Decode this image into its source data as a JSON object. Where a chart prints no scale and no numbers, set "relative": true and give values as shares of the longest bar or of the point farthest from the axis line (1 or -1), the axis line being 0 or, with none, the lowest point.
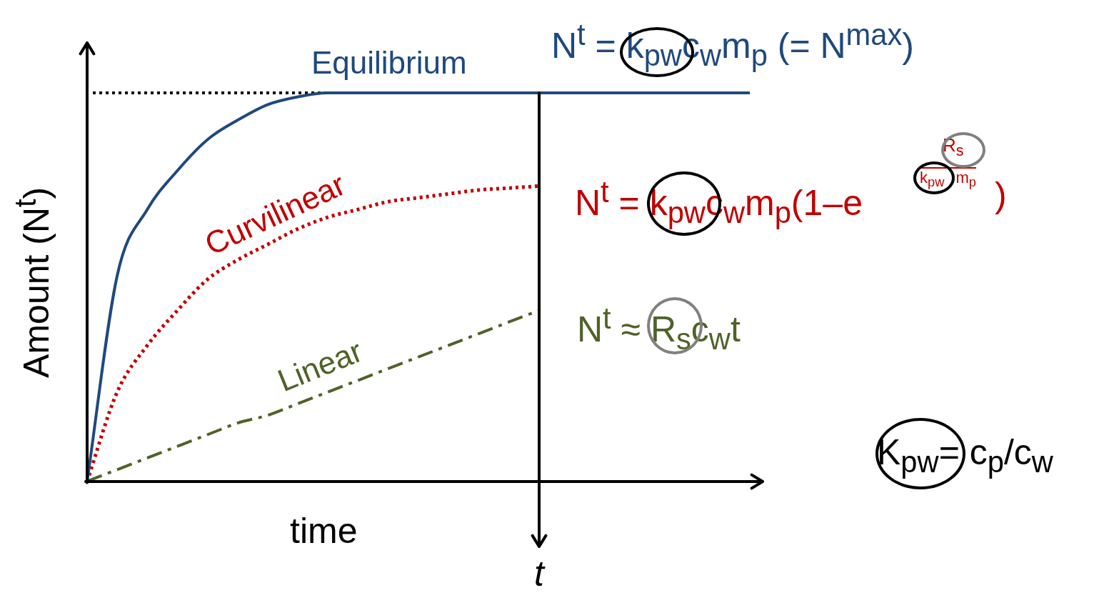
{
  "chart_data": {
    "type": "line",
    "relative": true,
    "xlabel": "time",
    "ylabel": "Amount (N$^{t}$)",
    "categories": [
      null,
      null,
      null,
      null,
      null,
      null,
      null,
      null,
      null,
      null,
      null,
      null,
      null,
      null,
      null,
      null,
      null,
      null,
      null,
      null,
      null,
      null,
      null
    ],
    "series": [
      {
        "name": "Equilibrium",
        "color": "#1f497d",
        "line_style": "solid",
        "values": [
          0,
          0.53,
          0.7,
          0.8,
          0.88,
          0.93,
          0.97,
          0.99,
          1,
          1,
          1,
          1,
          1,
          1,
          1,
          1,
          1,
          1,
          1,
          1,
          1,
          1,
          1
        ]
      },
      {
        "name": "Curvilinear",
        "color": "#c00000",
        "line_style": "dotted",
        "values": [
          0,
          0.23,
          0.35,
          0.44,
          0.52,
          0.57,
          0.61,
          0.65,
          0.68,
          0.7,
          0.72,
          0.73,
          0.74,
          0.75,
          0.755,
          0.76,
          null,
          null,
          null,
          null,
          null,
          null,
          null
        ]
      },
      {
        "name": "Linear",
        "color": "#4f6228",
        "line_style": "dashdot",
        "values": [
          0,
          0.03,
          0.06,
          0.09,
          0.12,
          0.15,
          0.17,
          0.2,
          0.23,
          0.26,
          0.29,
          0.32,
          0.35,
          0.38,
          0.41,
          0.44,
          null,
          null,
          null,
          null,
          null,
          null,
          null
        ]
      }
    ],
    "ref_lines": [
      {
        "axis": "y",
        "value": 1,
        "color": "#000000",
        "line_style": "dotted"
      }
    ],
    "annotations": [
      "N$^{t}$ = k$_{pw}$c$_{w}$m$_{p}$ (= N$^{max}$)",
      "N$^{t}$ = k$_{pw}$c$_{w}$m$_{p}$(1–e",
      "R$_{s}$",
      "k$_{pw}$m$_{p}$",
      ")",
      "N$^{t}$ ≈ R$_{s}$c$_{w}$t",
      "K$_{pw}$= c$_{p}$/c$_{w}$",
      "t"
    ],
    "grid": false,
    "legend": false,
    "marker": "none"
  }
}
